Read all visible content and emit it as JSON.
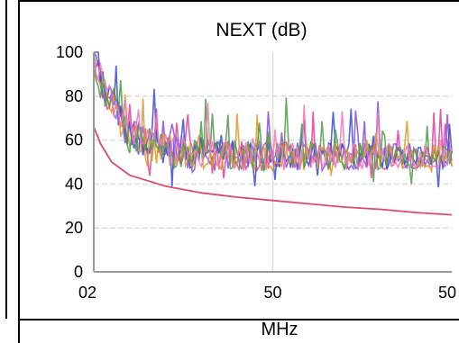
{
  "chart_data": {
    "type": "line",
    "title": "NEXT (dB)",
    "xlabel": "MHz",
    "ylabel": "",
    "ylim": [
      0,
      100
    ],
    "yticks": [
      "0",
      "20",
      "40",
      "60",
      "80",
      "100"
    ],
    "xticks": [
      "02",
      "50",
      "50"
    ],
    "grid": true,
    "limit_line": {
      "color": "#d94b6e",
      "x": [
        0,
        0.02,
        0.05,
        0.1,
        0.2,
        0.3,
        0.4,
        0.5,
        0.6,
        0.7,
        0.8,
        0.9,
        1.0
      ],
      "y": [
        66,
        58,
        50,
        44,
        39,
        36,
        34,
        32.5,
        31,
        29.5,
        28.5,
        27,
        26
      ]
    },
    "noise_series": {
      "colors": [
        "#e0409a",
        "#8a4fd8",
        "#3b4bd6",
        "#d99a2e",
        "#4f9a4a",
        "#f07bb4"
      ],
      "baseline": 52,
      "start_peak": 98
    }
  }
}
